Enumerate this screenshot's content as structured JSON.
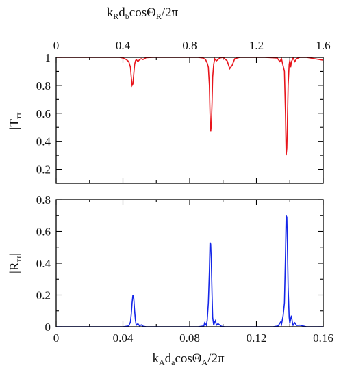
{
  "chart_data": [
    {
      "type": "line",
      "panel": "top",
      "title": "",
      "xlabel_top": "k_R d_b cos Θ_R / 2π",
      "xlabel_top_parts": [
        "k",
        "R",
        "d",
        "b",
        "cosΘ",
        "R",
        "/2π"
      ],
      "ylabel": "|Tтт|",
      "ylabel_parts": [
        "|T",
        "ττ",
        "|"
      ],
      "top_xlim": [
        0,
        1.6
      ],
      "top_xticks": [
        "0",
        "0.4",
        "0.8",
        "1.2",
        "1.6"
      ],
      "xlim": [
        0,
        0.16
      ],
      "ylim": [
        0.1,
        1.0
      ],
      "yticks": [
        "0.2",
        "0.4",
        "0.6",
        "0.8",
        "1"
      ],
      "grid": false,
      "series": [
        {
          "color": "#e8141b",
          "x": [
            0,
            0.038,
            0.04,
            0.042,
            0.0435,
            0.0445,
            0.045,
            0.0455,
            0.046,
            0.0465,
            0.047,
            0.0475,
            0.048,
            0.049,
            0.05,
            0.051,
            0.052,
            0.054,
            0.058,
            0.07,
            0.085,
            0.088,
            0.0895,
            0.0905,
            0.0912,
            0.0918,
            0.0922,
            0.0926,
            0.093,
            0.0934,
            0.0938,
            0.0944,
            0.095,
            0.096,
            0.098,
            0.1,
            0.1025,
            0.104,
            0.1055,
            0.107,
            0.11,
            0.125,
            0.1325,
            0.134,
            0.135,
            0.136,
            0.1368,
            0.1374,
            0.1378,
            0.1382,
            0.1386,
            0.139,
            0.1396,
            0.14,
            0.1405,
            0.141,
            0.142,
            0.143,
            0.144,
            0.146,
            0.15,
            0.155,
            0.16
          ],
          "y": [
            1,
            1,
            0.995,
            0.985,
            0.97,
            0.93,
            0.86,
            0.8,
            0.81,
            0.88,
            0.95,
            0.975,
            0.985,
            0.97,
            0.985,
            0.99,
            0.985,
            0.998,
            1,
            1,
            1,
            0.995,
            0.985,
            0.96,
            0.93,
            0.8,
            0.6,
            0.47,
            0.52,
            0.68,
            0.86,
            0.95,
            0.99,
            0.975,
            0.995,
            1,
            0.975,
            0.92,
            0.945,
            0.99,
            1,
            1,
            0.995,
            0.97,
            0.99,
            0.94,
            0.9,
            0.6,
            0.3,
            0.35,
            0.55,
            0.8,
            0.95,
            0.98,
            0.93,
            0.97,
            0.995,
            0.97,
            0.99,
            1,
            1,
            0.99,
            0.98
          ]
        }
      ]
    },
    {
      "type": "line",
      "panel": "bottom",
      "title": "",
      "xlabel": "k_A d_a cos Θ_A / 2π",
      "xlabel_parts": [
        "k",
        "A",
        "d",
        "a",
        "cosΘ",
        "A",
        "/2π"
      ],
      "ylabel": "|Rтт|",
      "ylabel_parts": [
        "|R",
        "ττ",
        "|"
      ],
      "xlim": [
        0,
        0.16
      ],
      "xticks": [
        "0",
        "0.04",
        "0.08",
        "0.12",
        "0.16"
      ],
      "ylim": [
        0,
        0.8
      ],
      "yticks": [
        "0",
        "0.2",
        "0.4",
        "0.6",
        "0.8"
      ],
      "grid": false,
      "series": [
        {
          "color": "#1426e8",
          "x": [
            0,
            0.04,
            0.0435,
            0.0445,
            0.045,
            0.0455,
            0.046,
            0.0465,
            0.047,
            0.0475,
            0.048,
            0.049,
            0.05,
            0.051,
            0.052,
            0.054,
            0.085,
            0.0885,
            0.089,
            0.09,
            0.0905,
            0.0912,
            0.0918,
            0.0922,
            0.0926,
            0.093,
            0.0934,
            0.0938,
            0.0944,
            0.095,
            0.0955,
            0.096,
            0.097,
            0.099,
            0.101,
            0.13,
            0.133,
            0.1345,
            0.135,
            0.136,
            0.1368,
            0.1374,
            0.1378,
            0.1382,
            0.1386,
            0.139,
            0.1396,
            0.14,
            0.1405,
            0.141,
            0.1415,
            0.142,
            0.143,
            0.144,
            0.146,
            0.15,
            0.16
          ],
          "y": [
            0,
            0,
            0.005,
            0.03,
            0.08,
            0.15,
            0.2,
            0.18,
            0.1,
            0.04,
            0.01,
            0.02,
            0.005,
            0.012,
            0.004,
            0,
            0,
            0.005,
            0.025,
            0.01,
            0.04,
            0.15,
            0.35,
            0.53,
            0.52,
            0.4,
            0.2,
            0.06,
            0.01,
            0.03,
            0.04,
            0.01,
            0.02,
            0.003,
            0,
            0,
            0.005,
            0.03,
            0.015,
            0.07,
            0.15,
            0.45,
            0.7,
            0.69,
            0.5,
            0.25,
            0.06,
            0.02,
            0.05,
            0.07,
            0.03,
            0.01,
            0.025,
            0.008,
            0.01,
            0,
            0
          ]
        }
      ]
    }
  ]
}
